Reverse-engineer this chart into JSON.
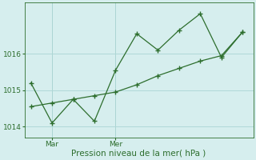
{
  "jagged_x": [
    0,
    1,
    2,
    3,
    4,
    5,
    6,
    7,
    8,
    9,
    10
  ],
  "jagged_y": [
    1015.2,
    1014.1,
    1014.75,
    1014.15,
    1015.55,
    1016.55,
    1016.1,
    1016.65,
    1017.1,
    1015.9,
    1016.6
  ],
  "trend_x": [
    0,
    1,
    2,
    3,
    4,
    5,
    6,
    7,
    8,
    9,
    10
  ],
  "trend_y": [
    1014.55,
    1014.65,
    1014.75,
    1014.85,
    1014.95,
    1015.15,
    1015.4,
    1015.6,
    1015.8,
    1015.95,
    1016.6
  ],
  "color": "#2d6e2d",
  "bg_color": "#d6eeee",
  "grid_color": "#b0d8d8",
  "xlabel": "Pression niveau de la mer( hPa )",
  "yticks": [
    1014,
    1015,
    1016
  ],
  "ylim": [
    1013.7,
    1017.4
  ],
  "xlim": [
    -0.3,
    10.5
  ],
  "mar_x": 1,
  "mer_x": 4
}
